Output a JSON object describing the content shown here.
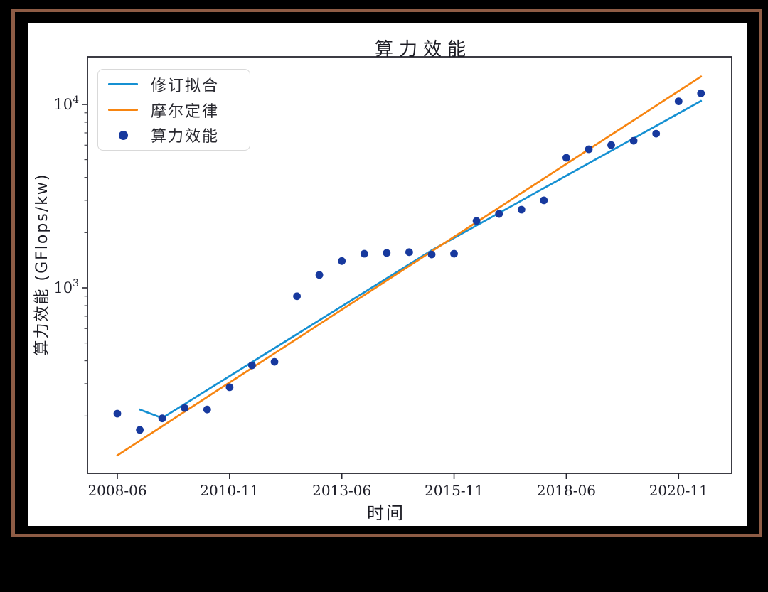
{
  "window": {
    "background_color": "#000000",
    "frame_color": "#8e5c45",
    "figure_background": "#ffffff"
  },
  "chart_data": {
    "type": "scatter",
    "title": "算力效能",
    "xlabel": "时间",
    "ylabel": "算力效能 (GFlops/kw)",
    "yscale": "log",
    "ylim": [
      97,
      17700
    ],
    "grid": false,
    "legend_position": "upper left",
    "categories": [
      "2008-06",
      "2008-11",
      "2009-06",
      "2009-11",
      "2010-06",
      "2010-11",
      "2011-06",
      "2011-11",
      "2012-06",
      "2012-11",
      "2013-06",
      "2013-11",
      "2014-06",
      "2014-11",
      "2015-06",
      "2015-11",
      "2016-06",
      "2016-11",
      "2017-06",
      "2017-11",
      "2018-06",
      "2018-11",
      "2019-06",
      "2019-11",
      "2020-06",
      "2020-11",
      "2021-06"
    ],
    "x_ticks": {
      "indices": [
        0,
        5,
        10,
        15,
        20,
        25
      ],
      "labels": [
        "2008-06",
        "2010-11",
        "2013-06",
        "2015-11",
        "2018-06",
        "2020-11"
      ]
    },
    "y_ticks": {
      "major": [
        {
          "value": 1000,
          "mantissa": "10",
          "exponent": "3"
        },
        {
          "value": 10000,
          "mantissa": "10",
          "exponent": "4"
        }
      ],
      "minor": [
        200,
        300,
        400,
        500,
        600,
        700,
        800,
        900,
        2000,
        3000,
        4000,
        5000,
        6000,
        7000,
        8000,
        9000
      ]
    },
    "series": [
      {
        "name": "修订拟合",
        "type": "line",
        "color": "#1590d2",
        "points": [
          [
            1,
            217
          ],
          [
            2,
            195
          ],
          [
            14,
            1600
          ],
          [
            26,
            10450
          ]
        ]
      },
      {
        "name": "摩尔定律",
        "type": "line",
        "color": "#f78511",
        "points": [
          [
            0,
            122
          ],
          [
            26,
            14200
          ]
        ]
      },
      {
        "name": "算力效能",
        "type": "scatter",
        "color": "#17399e",
        "values": [
          206,
          168,
          194,
          221,
          217,
          287,
          378,
          395,
          900,
          1175,
          1400,
          1535,
          1550,
          1565,
          1520,
          1535,
          2315,
          2530,
          2670,
          3000,
          5120,
          5700,
          6010,
          6340,
          6930,
          10400,
          11500
        ]
      }
    ]
  }
}
